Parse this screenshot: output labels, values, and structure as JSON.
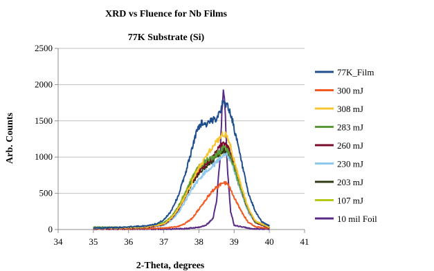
{
  "chart_data": {
    "type": "line",
    "title": "XRD vs Fluence for Nb Films",
    "subtitle": "77K Substrate (Si)",
    "xlabel": "2-Theta, degrees",
    "ylabel": "Arb. Counts",
    "xlim": [
      34,
      41
    ],
    "ylim": [
      0,
      2500
    ],
    "xticks": [
      34,
      35,
      36,
      37,
      38,
      39,
      40,
      41
    ],
    "yticks": [
      0,
      500,
      1000,
      1500,
      2000,
      2500
    ],
    "grid": "horizontal",
    "legend": "right",
    "series": [
      {
        "name": "77K_Film",
        "color": "#1f4e8c",
        "x": [
          35.0,
          35.5,
          36.0,
          36.5,
          36.8,
          37.0,
          37.2,
          37.4,
          37.6,
          37.8,
          37.9,
          38.0,
          38.1,
          38.2,
          38.3,
          38.4,
          38.5,
          38.6,
          38.7,
          38.8,
          38.9,
          39.0,
          39.2,
          39.4,
          39.6,
          39.8,
          40.0
        ],
        "y": [
          20,
          25,
          35,
          50,
          80,
          130,
          250,
          450,
          750,
          1100,
          1300,
          1430,
          1480,
          1450,
          1480,
          1500,
          1550,
          1650,
          1760,
          1720,
          1600,
          1400,
          950,
          500,
          250,
          100,
          50
        ]
      },
      {
        "name": "300 mJ",
        "color": "#f05a23",
        "x": [
          35.0,
          36.0,
          37.0,
          37.4,
          37.6,
          37.8,
          38.0,
          38.2,
          38.4,
          38.6,
          38.7,
          38.8,
          38.9,
          39.0,
          39.2,
          39.4,
          39.6,
          40.0
        ],
        "y": [
          10,
          10,
          20,
          40,
          80,
          150,
          280,
          420,
          540,
          620,
          650,
          630,
          560,
          450,
          250,
          100,
          40,
          15
        ]
      },
      {
        "name": "308 mJ",
        "color": "#f7c531",
        "x": [
          35.0,
          36.0,
          36.5,
          37.0,
          37.2,
          37.4,
          37.6,
          37.8,
          38.0,
          38.2,
          38.4,
          38.6,
          38.7,
          38.8,
          38.9,
          39.0,
          39.2,
          39.4,
          39.6,
          40.0
        ],
        "y": [
          20,
          25,
          35,
          80,
          150,
          280,
          450,
          650,
          850,
          1000,
          1150,
          1280,
          1330,
          1280,
          1150,
          950,
          600,
          300,
          120,
          30
        ]
      },
      {
        "name": "283 mJ",
        "color": "#5b9a36",
        "x": [
          35.0,
          36.0,
          36.5,
          37.0,
          37.2,
          37.4,
          37.6,
          37.8,
          38.0,
          38.2,
          38.4,
          38.6,
          38.7,
          38.8,
          38.9,
          39.0,
          39.2,
          39.4,
          39.6,
          40.0
        ],
        "y": [
          30,
          30,
          40,
          90,
          160,
          300,
          480,
          700,
          870,
          950,
          1000,
          1080,
          1130,
          1100,
          1000,
          850,
          550,
          280,
          110,
          30
        ]
      },
      {
        "name": "260 mJ",
        "color": "#7a0b2a",
        "x": [
          35.0,
          36.0,
          36.5,
          37.0,
          37.2,
          37.4,
          37.6,
          37.8,
          38.0,
          38.2,
          38.4,
          38.6,
          38.7,
          38.8,
          38.9,
          39.0,
          39.2,
          39.4,
          39.6,
          40.0
        ],
        "y": [
          15,
          20,
          30,
          70,
          140,
          270,
          450,
          650,
          800,
          900,
          1000,
          1150,
          1200,
          1150,
          1050,
          880,
          550,
          270,
          100,
          25
        ]
      },
      {
        "name": "230 mJ",
        "color": "#8ec8ec",
        "x": [
          35.0,
          36.0,
          36.5,
          37.0,
          37.2,
          37.4,
          37.6,
          37.8,
          38.0,
          38.2,
          38.4,
          38.6,
          38.7,
          38.8,
          38.9,
          39.0,
          39.2,
          39.4,
          39.6,
          40.0
        ],
        "y": [
          15,
          20,
          30,
          60,
          120,
          220,
          380,
          560,
          700,
          800,
          880,
          980,
          1050,
          1020,
          950,
          820,
          520,
          250,
          100,
          25
        ]
      },
      {
        "name": "203 mJ",
        "color": "#2f3a14",
        "x": [
          35.0,
          36.0,
          36.5,
          37.0,
          37.2,
          37.4,
          37.6,
          37.8,
          38.0,
          38.2,
          38.4,
          38.6,
          38.7,
          38.8,
          38.9,
          39.0,
          39.2,
          39.4,
          39.6,
          40.0
        ],
        "y": [
          15,
          20,
          30,
          70,
          140,
          260,
          440,
          640,
          780,
          880,
          950,
          1050,
          1100,
          1060,
          980,
          830,
          520,
          250,
          100,
          25
        ]
      },
      {
        "name": "107 mJ",
        "color": "#b5c919",
        "x": [
          35.0,
          36.0,
          36.5,
          37.0,
          37.2,
          37.4,
          37.6,
          37.8,
          38.0,
          38.2,
          38.4,
          38.6,
          38.7,
          38.8,
          38.9,
          39.0,
          39.2,
          39.4,
          39.6,
          40.0
        ],
        "y": [
          25,
          25,
          35,
          90,
          170,
          310,
          500,
          710,
          860,
          920,
          970,
          1050,
          1100,
          1080,
          980,
          840,
          540,
          270,
          110,
          30
        ]
      },
      {
        "name": "10 mil Foil",
        "color": "#5a2a86",
        "x": [
          35.0,
          36.0,
          37.0,
          37.5,
          38.0,
          38.2,
          38.4,
          38.5,
          38.6,
          38.65,
          38.7,
          38.75,
          38.8,
          38.9,
          39.0,
          39.5,
          40.0
        ],
        "y": [
          5,
          5,
          5,
          10,
          30,
          60,
          150,
          400,
          1000,
          1600,
          1950,
          1600,
          900,
          250,
          60,
          10,
          5
        ]
      }
    ]
  }
}
